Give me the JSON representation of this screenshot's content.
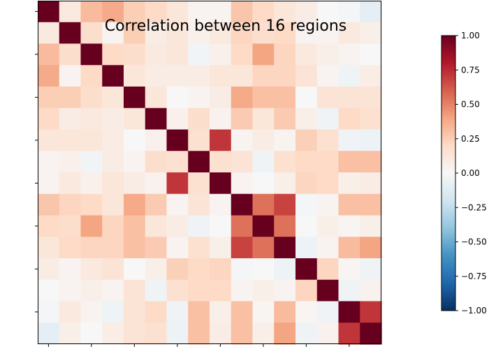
{
  "chart_data": {
    "type": "heatmap",
    "title": "Correlation between 16 regions",
    "n": 16,
    "matrix": [
      [
        1.0,
        0.1,
        0.32,
        0.38,
        0.25,
        0.2,
        0.12,
        0.03,
        0.03,
        0.28,
        0.2,
        0.12,
        0.08,
        0.0,
        -0.02,
        -0.1
      ],
      [
        0.1,
        1.0,
        0.18,
        0.03,
        0.25,
        0.08,
        0.12,
        0.05,
        0.1,
        0.22,
        0.18,
        0.2,
        0.03,
        0.03,
        0.1,
        0.06
      ],
      [
        0.32,
        0.18,
        1.0,
        0.2,
        0.18,
        0.1,
        0.12,
        -0.03,
        0.05,
        0.2,
        0.4,
        0.22,
        0.1,
        0.06,
        0.03,
        0.0
      ],
      [
        0.38,
        0.03,
        0.2,
        1.0,
        0.12,
        0.08,
        0.08,
        0.08,
        0.12,
        0.12,
        0.22,
        0.22,
        0.14,
        0.03,
        -0.05,
        0.07
      ],
      [
        0.25,
        0.25,
        0.18,
        0.12,
        1.0,
        0.12,
        0.0,
        0.03,
        0.08,
        0.38,
        0.3,
        0.3,
        0.0,
        0.14,
        0.14,
        0.14
      ],
      [
        0.2,
        0.08,
        0.1,
        0.08,
        0.12,
        1.0,
        0.05,
        0.18,
        0.04,
        0.26,
        0.12,
        0.26,
        0.06,
        -0.04,
        0.2,
        0.16
      ],
      [
        0.12,
        0.12,
        0.12,
        0.08,
        0.0,
        0.05,
        1.0,
        0.16,
        0.72,
        0.03,
        0.08,
        0.03,
        0.24,
        0.16,
        -0.04,
        -0.06
      ],
      [
        0.03,
        0.05,
        -0.03,
        0.08,
        0.03,
        0.18,
        0.16,
        1.0,
        0.16,
        0.14,
        -0.04,
        0.16,
        0.2,
        0.2,
        0.3,
        0.3
      ],
      [
        0.03,
        0.1,
        0.05,
        0.12,
        0.08,
        0.04,
        0.72,
        0.16,
        1.0,
        0.03,
        0.0,
        0.06,
        0.22,
        0.2,
        0.06,
        0.08
      ],
      [
        0.28,
        0.22,
        0.2,
        0.12,
        0.38,
        0.26,
        0.03,
        0.14,
        0.03,
        1.0,
        0.55,
        0.68,
        -0.02,
        0.03,
        0.3,
        0.3
      ],
      [
        0.2,
        0.18,
        0.4,
        0.22,
        0.3,
        0.12,
        0.08,
        -0.04,
        0.0,
        0.55,
        1.0,
        0.55,
        0.0,
        0.06,
        0.02,
        0.06
      ],
      [
        0.12,
        0.2,
        0.22,
        0.22,
        0.3,
        0.26,
        0.03,
        0.16,
        0.06,
        0.68,
        0.55,
        1.0,
        -0.06,
        0.03,
        0.32,
        0.4
      ],
      [
        0.08,
        0.03,
        0.1,
        0.14,
        0.0,
        0.06,
        0.24,
        0.2,
        0.22,
        -0.02,
        0.0,
        -0.06,
        1.0,
        0.22,
        0.02,
        -0.04
      ],
      [
        0.0,
        0.03,
        0.06,
        0.03,
        0.14,
        -0.04,
        0.16,
        0.2,
        0.2,
        0.03,
        0.06,
        0.03,
        0.22,
        1.0,
        -0.04,
        0.04
      ],
      [
        -0.02,
        0.1,
        0.03,
        -0.05,
        0.14,
        0.2,
        -0.04,
        0.3,
        0.06,
        0.3,
        0.02,
        0.32,
        0.02,
        -0.04,
        1.0,
        0.72
      ],
      [
        -0.1,
        0.06,
        0.0,
        0.07,
        0.14,
        0.16,
        -0.06,
        0.3,
        0.08,
        0.3,
        0.06,
        0.4,
        -0.04,
        0.04,
        0.72,
        1.0
      ]
    ],
    "colorbar": {
      "colormap": "RdBu_r",
      "range": [
        -1.0,
        1.0
      ],
      "ticks": [
        1.0,
        0.75,
        0.5,
        0.25,
        0.0,
        -0.25,
        -0.5,
        -0.75,
        -1.0
      ],
      "tick_labels": [
        "1.00",
        "0.75",
        "0.50",
        "0.25",
        "0.00",
        "−0.25",
        "−0.50",
        "−0.75",
        "−1.00"
      ]
    },
    "axes": {
      "x_tick_count": 8,
      "y_tick_count": 8,
      "tick_labels_shown": false
    }
  }
}
